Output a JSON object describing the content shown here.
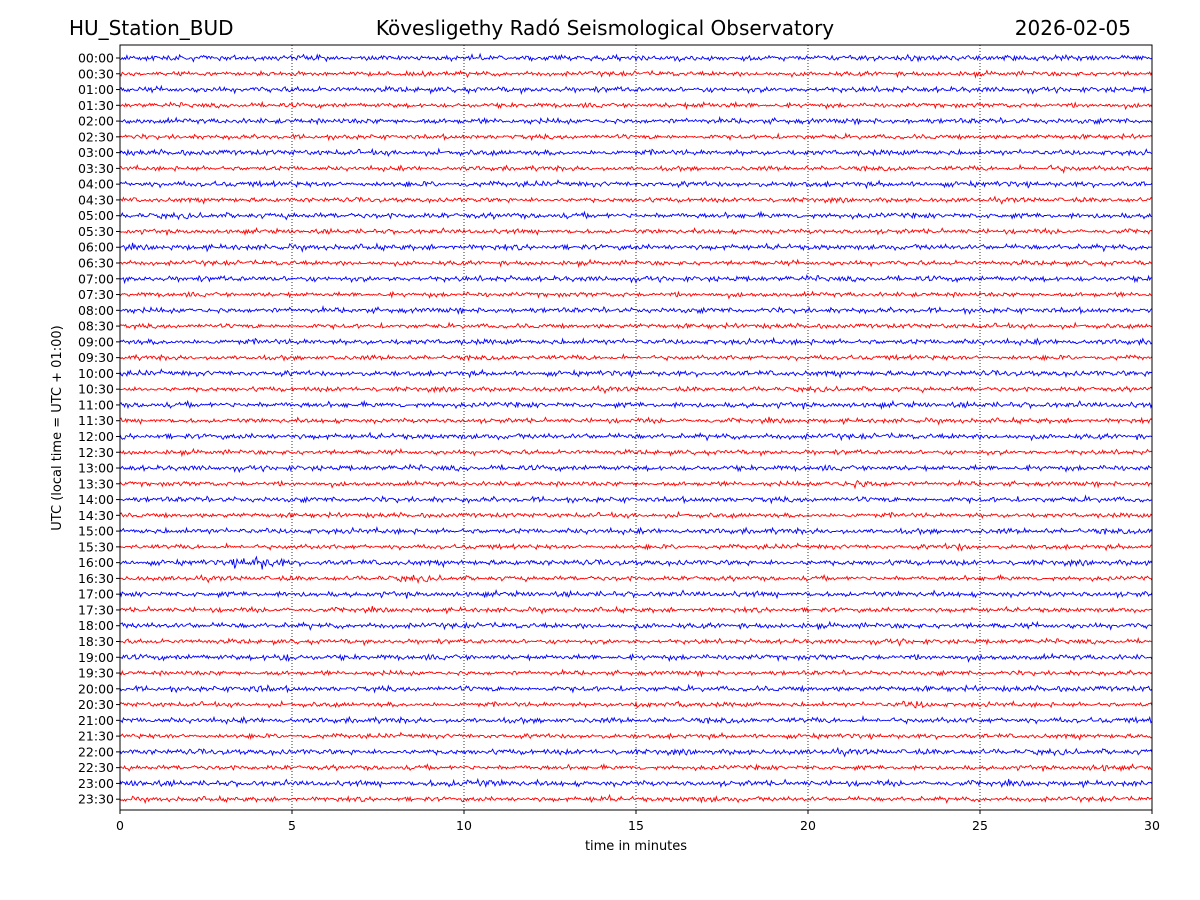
{
  "chart_data": {
    "type": "line",
    "title_left": "HU_Station_BUD",
    "title_center": "Kövesligethy Radó Seismological Observatory",
    "title_right": "2026-02-05",
    "xlabel": "time in minutes",
    "ylabel": "UTC (local time = UTC + 01:00)",
    "xlim": [
      0,
      30
    ],
    "x_ticks": [
      0,
      5,
      10,
      15,
      20,
      25,
      30
    ],
    "vertical_grid": "dotted at each x tick",
    "trace_colors": [
      "#0000ff",
      "#ff0000"
    ],
    "rows": [
      "00:00",
      "00:30",
      "01:00",
      "01:30",
      "02:00",
      "02:30",
      "03:00",
      "03:30",
      "04:00",
      "04:30",
      "05:00",
      "05:30",
      "06:00",
      "06:30",
      "07:00",
      "07:30",
      "08:00",
      "08:30",
      "09:00",
      "09:30",
      "10:00",
      "10:30",
      "11:00",
      "11:30",
      "12:00",
      "12:30",
      "13:00",
      "13:30",
      "14:00",
      "14:30",
      "15:00",
      "15:30",
      "16:00",
      "16:30",
      "17:00",
      "17:30",
      "18:00",
      "18:30",
      "19:00",
      "19:30",
      "20:00",
      "20:30",
      "21:00",
      "21:30",
      "22:00",
      "22:30",
      "23:00",
      "23:30"
    ],
    "series_note": "each row is a 30-minute seismogram trace; colors alternate blue/red",
    "events": [
      {
        "row": "16:00",
        "start_min": 3.2,
        "end_min": 4.8,
        "amp": 3.0
      },
      {
        "row": "19:00",
        "start_min": 4.2,
        "end_min": 5.2,
        "amp": 2.0
      },
      {
        "row": "20:00",
        "start_min": 3.5,
        "end_min": 4.5,
        "amp": 1.7
      },
      {
        "row": "20:30",
        "start_min": 14.9,
        "end_min": 15.4,
        "amp": 2.0
      },
      {
        "row": "20:30",
        "start_min": 16.1,
        "end_min": 16.6,
        "amp": 2.0
      },
      {
        "row": "20:30",
        "start_min": 22.5,
        "end_min": 23.8,
        "amp": 2.0
      },
      {
        "row": "13:30",
        "start_min": 20.5,
        "end_min": 22.5,
        "amp": 2.0
      },
      {
        "row": "15:30",
        "start_min": 24.0,
        "end_min": 24.8,
        "amp": 2.0
      },
      {
        "row": "23:00",
        "start_min": 8.8,
        "end_min": 11.5,
        "amp": 1.8
      },
      {
        "row": "23:00",
        "start_min": 0.0,
        "end_min": 1.3,
        "amp": 1.5
      },
      {
        "row": "23:30",
        "start_min": 13.6,
        "end_min": 14.3,
        "amp": 1.8
      },
      {
        "row": "23:30",
        "start_min": 16.0,
        "end_min": 18.0,
        "amp": 1.5
      },
      {
        "row": "22:30",
        "start_min": 28.0,
        "end_min": 29.0,
        "amp": 1.8
      },
      {
        "row": "16:30",
        "start_min": 7.5,
        "end_min": 9.5,
        "amp": 1.5
      },
      {
        "row": "01:30",
        "start_min": 15.8,
        "end_min": 18.5,
        "amp": 1.5
      },
      {
        "row": "03:30",
        "start_min": 26.5,
        "end_min": 28.0,
        "amp": 1.6
      },
      {
        "row": "18:30",
        "start_min": 22.0,
        "end_min": 23.5,
        "amp": 1.4
      }
    ]
  }
}
